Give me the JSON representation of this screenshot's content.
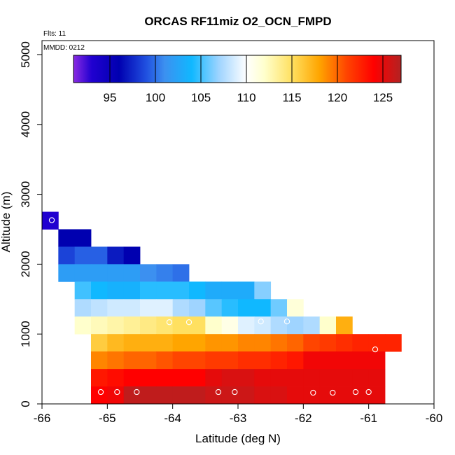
{
  "chart_data": {
    "type": "heatmap",
    "title": "ORCAS RF11miz O2_OCN_FMPD",
    "notes": {
      "flights": "Flts: 11",
      "date": "MMDD: 0212"
    },
    "xlabel": "Latitude (deg N)",
    "ylabel": "Altitude (m)",
    "xlim": [
      -66,
      -60
    ],
    "ylim": [
      0,
      5200
    ],
    "x_ticks": [
      -66,
      -65,
      -64,
      -63,
      -62,
      -61,
      -60
    ],
    "y_ticks": [
      0,
      1000,
      2000,
      3000,
      4000,
      5000
    ],
    "grid": false,
    "colorbar": {
      "range": [
        91,
        127
      ],
      "ticks": [
        95,
        100,
        105,
        110,
        115,
        120,
        125
      ],
      "placement": "top",
      "stops": [
        {
          "value": 91,
          "color": "#8a2be2"
        },
        {
          "value": 93,
          "color": "#2000d0"
        },
        {
          "value": 96,
          "color": "#0000b0"
        },
        {
          "value": 99,
          "color": "#2050e0"
        },
        {
          "value": 101,
          "color": "#3c90f0"
        },
        {
          "value": 104,
          "color": "#10b8ff"
        },
        {
          "value": 107,
          "color": "#9fd4ff"
        },
        {
          "value": 110,
          "color": "#ffffff"
        },
        {
          "value": 112,
          "color": "#ffffcc"
        },
        {
          "value": 115,
          "color": "#ffe060"
        },
        {
          "value": 118,
          "color": "#ffa500"
        },
        {
          "value": 121,
          "color": "#ff4500"
        },
        {
          "value": 124,
          "color": "#ff0000"
        },
        {
          "value": 127,
          "color": "#b22222"
        }
      ]
    },
    "cell_size": {
      "lat": 0.25,
      "alt": 250
    },
    "rows": [
      {
        "alt": [
          2500,
          2750
        ],
        "lat_start": -66.0,
        "values": [
          93
        ]
      },
      {
        "alt": [
          2250,
          2500
        ],
        "lat_start": -65.75,
        "values": [
          96,
          96
        ]
      },
      {
        "alt": [
          2000,
          2250
        ],
        "lat_start": -65.75,
        "values": [
          98.5,
          99.5,
          99.5,
          97,
          96
        ]
      },
      {
        "alt": [
          1750,
          2000
        ],
        "lat_start": -65.75,
        "values": [
          102,
          102,
          102,
          102,
          102,
          101,
          100.5,
          100
        ]
      },
      {
        "alt": [
          1500,
          1750
        ],
        "lat_start": -65.5,
        "values": [
          105,
          104,
          103.5,
          103.5,
          104.5,
          104.5,
          104.5,
          104,
          103,
          103,
          103,
          106.5
        ]
      },
      {
        "alt": [
          1250,
          1500
        ],
        "lat_start": -65.5,
        "values": [
          107.5,
          108,
          108.5,
          108.5,
          109,
          109,
          107.5,
          107,
          105.5,
          104.5,
          104,
          104,
          106,
          111.5
        ]
      },
      {
        "alt": [
          1000,
          1250
        ],
        "lat_start": -65.5,
        "values": [
          112,
          112.5,
          113,
          113.5,
          114,
          114.5,
          115,
          115,
          112,
          111,
          109,
          108.5,
          107.5,
          107,
          107.5,
          112,
          117.5
        ]
      },
      {
        "alt": [
          750,
          1000
        ],
        "lat_start": -65.25,
        "values": [
          116,
          117,
          117.5,
          117.5,
          117.5,
          118,
          118,
          118.5,
          118.5,
          119,
          119,
          119.5,
          120,
          121,
          121.5,
          122,
          122.5,
          122.5,
          122.5
        ]
      },
      {
        "alt": [
          500,
          750
        ],
        "lat_start": -65.25,
        "values": [
          119,
          119.5,
          120,
          120,
          120.5,
          121,
          121,
          121.5,
          121.5,
          122,
          122,
          122.5,
          123,
          124.5,
          124.5,
          124.5,
          124.5,
          124.5
        ]
      },
      {
        "alt": [
          250,
          500
        ],
        "lat_start": -65.25,
        "values": [
          123,
          123.5,
          124,
          124,
          124,
          124,
          124,
          125,
          125.5,
          125.5,
          125,
          125,
          125,
          125,
          125,
          125,
          125,
          125
        ]
      },
      {
        "alt": [
          0,
          250
        ],
        "lat_start": -65.25,
        "values": [
          124,
          124.5,
          126.5,
          126.5,
          126.5,
          126.5,
          126.5,
          126,
          126,
          126,
          125.5,
          125.5,
          125,
          125,
          125,
          125,
          125,
          125
        ]
      }
    ],
    "points": [
      {
        "lat": -65.85,
        "alt": 2630
      },
      {
        "lat": -65.1,
        "alt": 170
      },
      {
        "lat": -64.85,
        "alt": 170
      },
      {
        "lat": -64.55,
        "alt": 170
      },
      {
        "lat": -63.3,
        "alt": 170
      },
      {
        "lat": -63.05,
        "alt": 170
      },
      {
        "lat": -61.85,
        "alt": 160
      },
      {
        "lat": -61.55,
        "alt": 160
      },
      {
        "lat": -61.2,
        "alt": 170
      },
      {
        "lat": -61.0,
        "alt": 170
      },
      {
        "lat": -64.05,
        "alt": 1170
      },
      {
        "lat": -63.75,
        "alt": 1170
      },
      {
        "lat": -62.65,
        "alt": 1180
      },
      {
        "lat": -62.25,
        "alt": 1180
      },
      {
        "lat": -60.9,
        "alt": 780
      }
    ]
  }
}
